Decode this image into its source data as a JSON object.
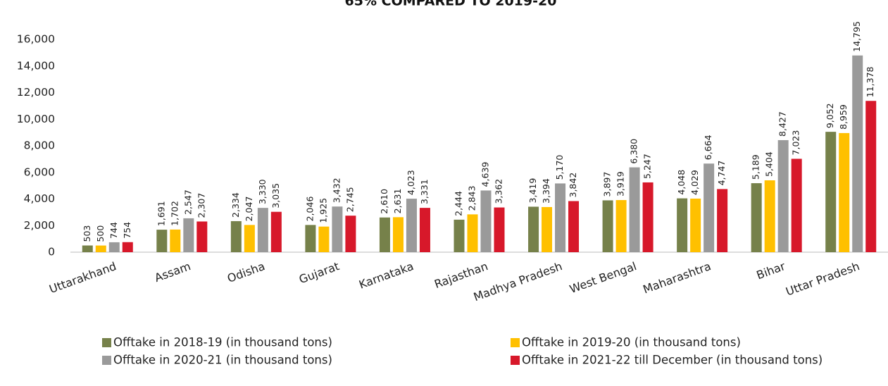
{
  "chart_data": {
    "type": "bar",
    "title": "65% COMPARED TO 2019-20",
    "categories": [
      "Uttarakhand",
      "Assam",
      "Odisha",
      "Gujarat",
      "Karnataka",
      "Rajasthan",
      "Madhya Pradesh",
      "West Bengal",
      "Maharashtra",
      "Bihar",
      "Uttar Pradesh"
    ],
    "series": [
      {
        "name": "Offtake in 2018-19 (in thousand tons)",
        "color": "#76814a",
        "values": [
          503,
          1691,
          2334,
          2046,
          2610,
          2444,
          3419,
          3897,
          4048,
          5189,
          9052
        ],
        "value_labels": [
          "503",
          "1,691",
          "2,334",
          "2,046",
          "2,610",
          "2,444",
          "3,419",
          "3,897",
          "4,048",
          "5,189",
          "9,052"
        ]
      },
      {
        "name": "Offtake in 2019-20 (in thousand tons)",
        "color": "#ffc000",
        "values": [
          500,
          1702,
          2047,
          1925,
          2631,
          2843,
          3394,
          3919,
          4029,
          5404,
          8959
        ],
        "value_labels": [
          "500",
          "1,702",
          "2,047",
          "1,925",
          "2,631",
          "2,843",
          "3,394",
          "3,919",
          "4,029",
          "5,404",
          "8,959"
        ]
      },
      {
        "name": "Offtake in 2020-21 (in thousand tons)",
        "color": "#9a9a9a",
        "values": [
          744,
          2547,
          3330,
          3432,
          4023,
          4639,
          5170,
          6380,
          6664,
          8427,
          14795
        ],
        "value_labels": [
          "744",
          "2,547",
          "3,330",
          "3,432",
          "4,023",
          "4,639",
          "5,170",
          "6,380",
          "6,664",
          "8,427",
          "14,795"
        ]
      },
      {
        "name": "Offtake in 2021-22 till December (in thousand tons)",
        "color": "#d7182a",
        "values": [
          754,
          2307,
          3035,
          2745,
          3331,
          3362,
          3842,
          5247,
          4747,
          7023,
          11378
        ],
        "value_labels": [
          "754",
          "2,307",
          "3,035",
          "2,745",
          "3,331",
          "3,362",
          "3,842",
          "5,247",
          "4,747",
          "7,023",
          "11,378"
        ]
      }
    ],
    "ylim": [
      0,
      16000
    ],
    "yticks": [
      0,
      {
        "value": 2000,
        "label": "2,000"
      },
      {
        "value": 4000,
        "label": "4,000"
      },
      {
        "value": 6000,
        "label": "6,000"
      },
      {
        "value": 8000,
        "label": "8,000"
      },
      {
        "value": 10000,
        "label": "10,000"
      },
      {
        "value": 12000,
        "label": "12,000"
      },
      {
        "value": 14000,
        "label": "14,000"
      },
      {
        "value": 16000,
        "label": "16,000"
      }
    ]
  }
}
